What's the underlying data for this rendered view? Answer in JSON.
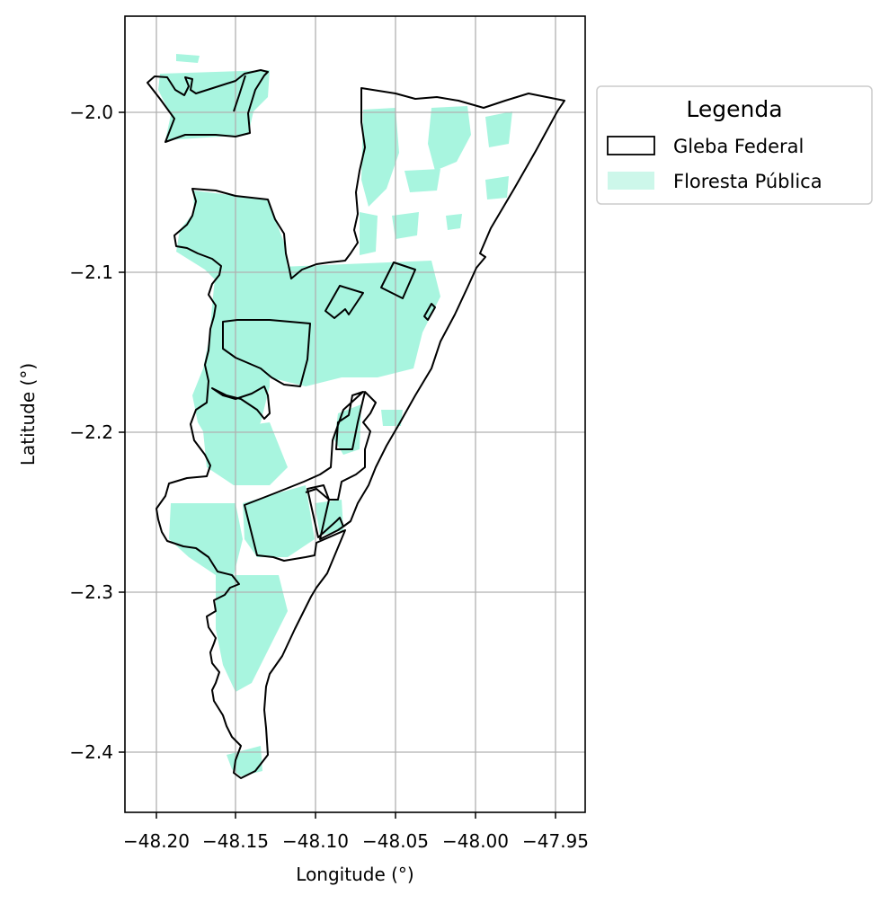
{
  "map": {
    "x_axis": {
      "label": "Longitude (°)",
      "ticks": [
        "−48.20",
        "−48.15",
        "−48.10",
        "−48.05",
        "−48.00",
        "−47.95"
      ]
    },
    "y_axis": {
      "label": "Latitude (°)",
      "ticks": [
        "−2.0",
        "−2.1",
        "−2.2",
        "−2.3",
        "−2.4"
      ]
    },
    "grid": true,
    "legend": {
      "title": "Legenda",
      "placement": "outside-right-top",
      "items": [
        {
          "label": "Gleba Federal",
          "style": "outline"
        },
        {
          "label": "Floresta Pública",
          "style": "filled"
        }
      ]
    },
    "colors": {
      "gleba_outline": "#000000",
      "floresta_fill": "#a8f5df",
      "legend_floresta_fill": "#cdf7ea",
      "grid": "#b0b0b0"
    }
  }
}
